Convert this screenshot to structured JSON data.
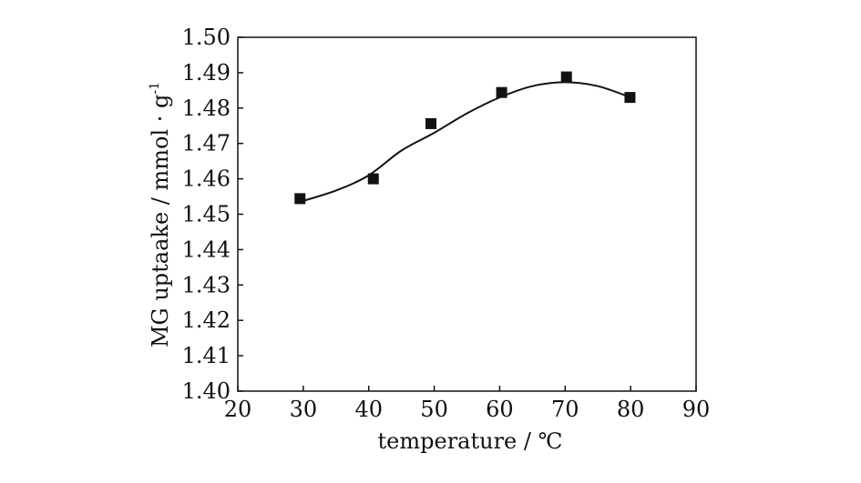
{
  "chart_data": {
    "type": "scatter",
    "title": "",
    "xlabel": "temperature / ℃",
    "ylabel": "MG uptaake / mmol · g",
    "ylabel_sup": "-1",
    "xlim": [
      20,
      90
    ],
    "ylim": [
      1.4,
      1.5
    ],
    "x_ticks": [
      20,
      30,
      40,
      50,
      60,
      70,
      80,
      90
    ],
    "y_ticks": [
      "1.40",
      "1.41",
      "1.42",
      "1.43",
      "1.44",
      "1.45",
      "1.46",
      "1.47",
      "1.48",
      "1.49",
      "1.50"
    ],
    "grid": false,
    "series": [
      {
        "marker": "square",
        "color": "#111111",
        "x": [
          29.5,
          40.7,
          49.5,
          60.3,
          70.2,
          79.9
        ],
        "y": [
          1.4544,
          1.46,
          1.4756,
          1.4844,
          1.4888,
          1.483
        ]
      }
    ],
    "fit_curve": {
      "color": "#111111",
      "x": [
        29.5,
        35,
        40,
        45,
        50,
        55,
        60,
        65,
        70,
        75,
        80
      ],
      "y": [
        1.4535,
        1.4567,
        1.461,
        1.468,
        1.473,
        1.4785,
        1.483,
        1.4862,
        1.4873,
        1.4862,
        1.483
      ]
    }
  }
}
